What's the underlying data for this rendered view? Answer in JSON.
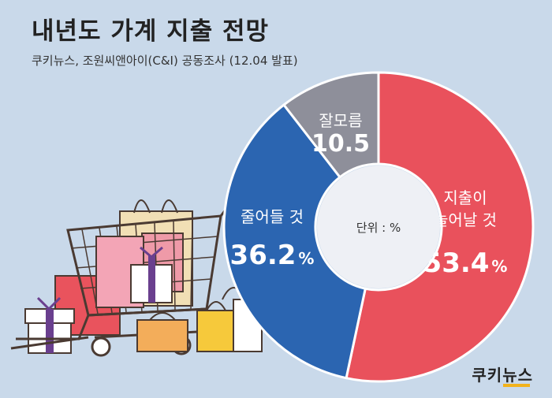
{
  "header": {
    "title": "내년도 가계 지출 전망",
    "subtitle": "쿠키뉴스, 조원씨앤아이(C&I) 공동조사 (12.04 발표)"
  },
  "chart_data": {
    "type": "pie",
    "donut": true,
    "center_label": "단위 : %",
    "slices": [
      {
        "label_lines": [
          "지출이",
          "늘어날 것"
        ],
        "value": 53.4,
        "value_text": "53.4",
        "unit": "%",
        "color": "#e9515c"
      },
      {
        "label_lines": [
          "줄어들 것"
        ],
        "value": 36.2,
        "value_text": "36.2",
        "unit": "%",
        "color": "#2b65b1"
      },
      {
        "label_lines": [
          "잘모름"
        ],
        "value": 10.5,
        "value_text": "10.5",
        "unit": "",
        "color": "#8e8f9a"
      }
    ]
  },
  "illustration": {
    "name": "shopping-cart-with-bags-and-gifts"
  },
  "brand": {
    "name": "쿠키뉴스"
  }
}
